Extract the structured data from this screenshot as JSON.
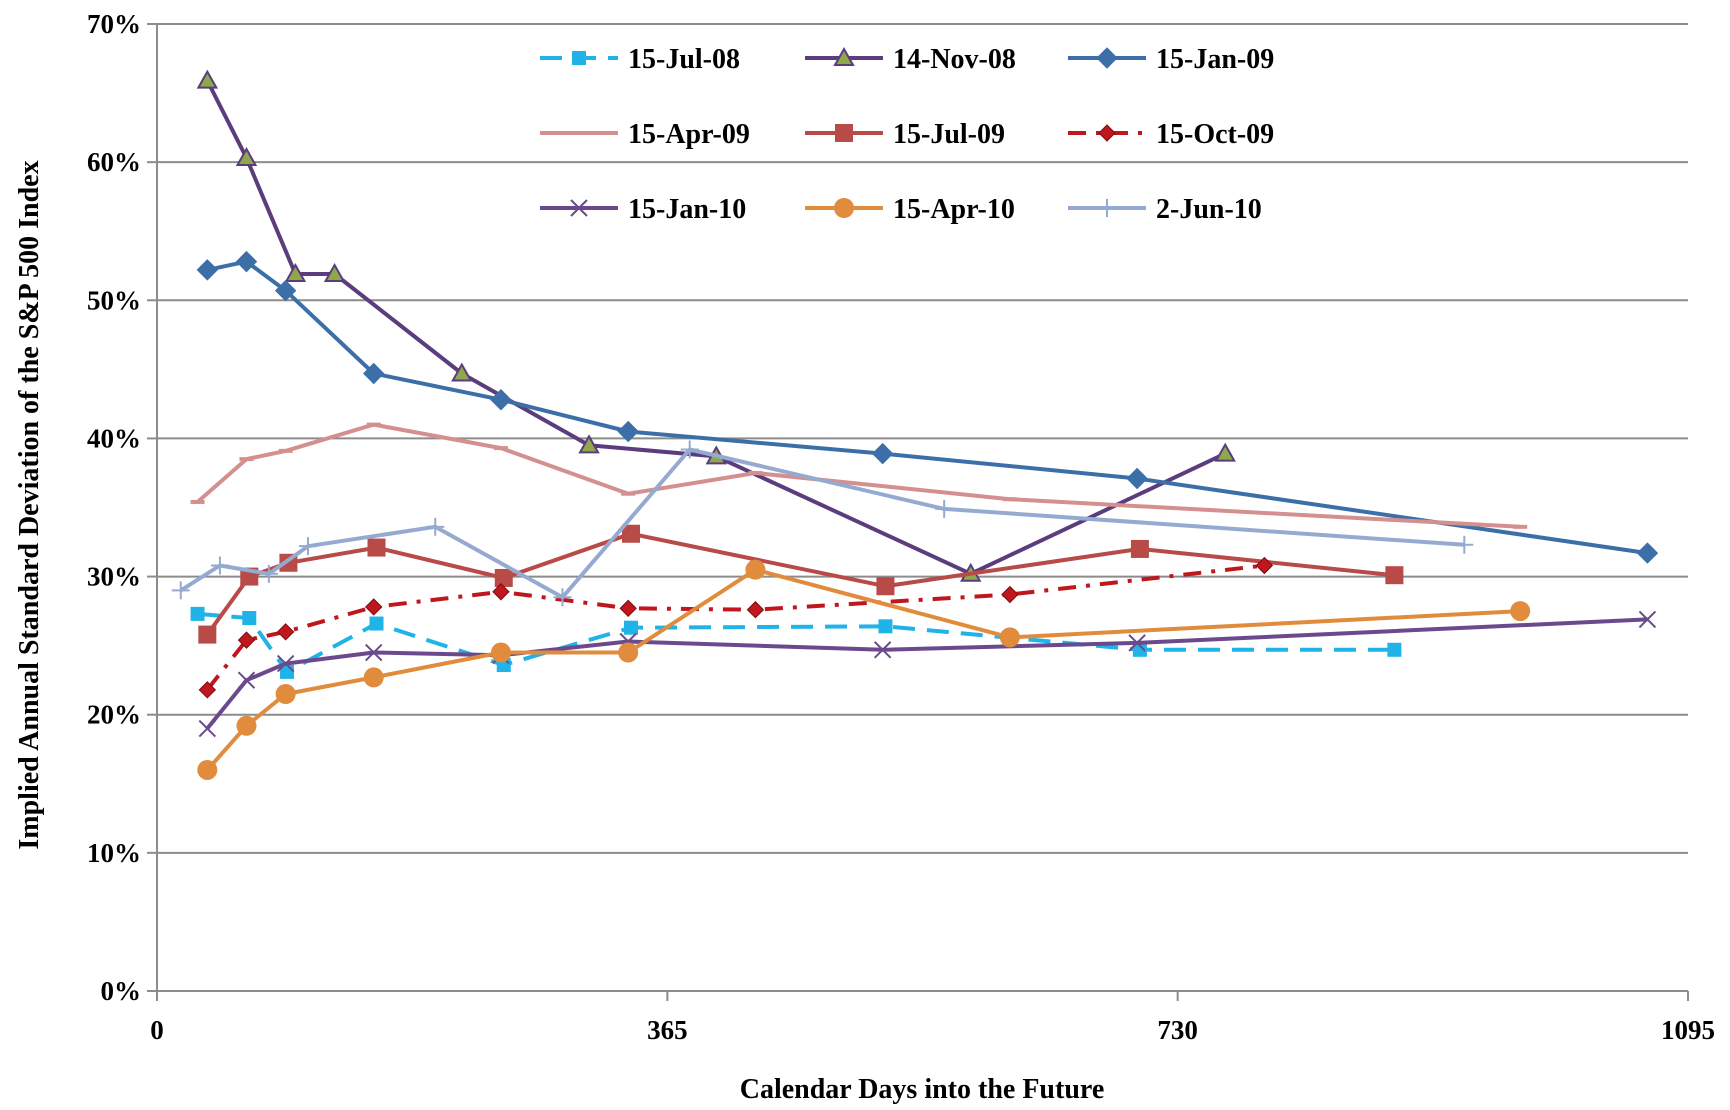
{
  "chart_data": {
    "type": "line",
    "xlabel": "Calendar Days into the Future",
    "ylabel": "Implied Annual Standard Deviation of the S&P 500 Index",
    "xlim": [
      0,
      1095
    ],
    "ylim": [
      0,
      70
    ],
    "x_ticks": [
      0,
      365,
      730,
      1095
    ],
    "x_tick_labels": [
      "0",
      "365",
      "730",
      "1095"
    ],
    "y_ticks": [
      0,
      10,
      20,
      30,
      40,
      50,
      60,
      70
    ],
    "y_tick_labels": [
      "0%",
      "10%",
      "20%",
      "30%",
      "40%",
      "50%",
      "60%",
      "70%"
    ],
    "grid": "horizontal",
    "legend": "top",
    "series": [
      {
        "name": "15-Jul-08",
        "color": "#1fb3e8",
        "dash": "dashed",
        "marker": "square-small",
        "x": [
          29,
          66,
          93,
          157,
          248,
          339,
          521,
          703,
          885
        ],
        "y": [
          27.3,
          27.0,
          23.1,
          26.6,
          23.6,
          26.3,
          26.4,
          24.7,
          24.7
        ]
      },
      {
        "name": "14-Nov-08",
        "color": "#5b3c7c",
        "dash": "solid",
        "marker": "triangle",
        "x": [
          36,
          64,
          99,
          127,
          218,
          309,
          400,
          582,
          764
        ],
        "y": [
          65.9,
          60.3,
          51.9,
          51.9,
          44.7,
          39.5,
          38.7,
          30.2,
          38.9
        ]
      },
      {
        "name": "15-Jan-09",
        "color": "#3c6fa8",
        "dash": "solid",
        "marker": "diamond",
        "x": [
          36,
          64,
          92,
          155,
          246,
          337,
          519,
          701,
          1066
        ],
        "y": [
          52.2,
          52.8,
          50.7,
          44.7,
          42.8,
          40.5,
          38.9,
          37.1,
          31.7
        ]
      },
      {
        "name": "15-Apr-09",
        "color": "#d48f8f",
        "dash": "solid",
        "marker": "dash",
        "x": [
          29,
          64,
          92,
          155,
          246,
          337,
          428,
          610,
          975
        ],
        "y": [
          35.4,
          38.5,
          39.1,
          41.0,
          39.3,
          36.0,
          37.5,
          35.6,
          33.6
        ]
      },
      {
        "name": "15-Jul-09",
        "color": "#b84a48",
        "dash": "solid",
        "marker": "square",
        "x": [
          36,
          66,
          94,
          157,
          248,
          339,
          521,
          703,
          885
        ],
        "y": [
          25.8,
          30.0,
          31.0,
          32.1,
          29.9,
          33.1,
          29.3,
          32.0,
          30.1
        ]
      },
      {
        "name": "15-Oct-09",
        "color": "#c0171e",
        "dash": "dashdot",
        "marker": "diamond-small",
        "x": [
          36,
          64,
          92,
          155,
          246,
          337,
          428,
          610,
          792
        ],
        "y": [
          21.8,
          25.4,
          26.0,
          27.8,
          28.9,
          27.7,
          27.6,
          28.7,
          30.8
        ]
      },
      {
        "name": "15-Jan-10",
        "color": "#6a4a8c",
        "dash": "solid",
        "marker": "x",
        "x": [
          36,
          64,
          92,
          155,
          246,
          337,
          519,
          701,
          1066
        ],
        "y": [
          19.0,
          22.5,
          23.7,
          24.5,
          24.3,
          25.3,
          24.7,
          25.2,
          26.9
        ]
      },
      {
        "name": "15-Apr-10",
        "color": "#e08c3c",
        "dash": "solid",
        "marker": "circle",
        "x": [
          36,
          64,
          92,
          155,
          246,
          337,
          428,
          610,
          975
        ],
        "y": [
          16.0,
          19.2,
          21.5,
          22.7,
          24.5,
          24.5,
          30.5,
          25.6,
          27.5
        ]
      },
      {
        "name": "2-Jun-10",
        "color": "#95aad0",
        "dash": "solid",
        "marker": "plus",
        "x": [
          17,
          45,
          80,
          108,
          199,
          290,
          381,
          563,
          935
        ],
        "y": [
          29.0,
          30.8,
          30.2,
          32.2,
          33.6,
          28.5,
          39.2,
          34.9,
          32.3
        ]
      }
    ]
  }
}
